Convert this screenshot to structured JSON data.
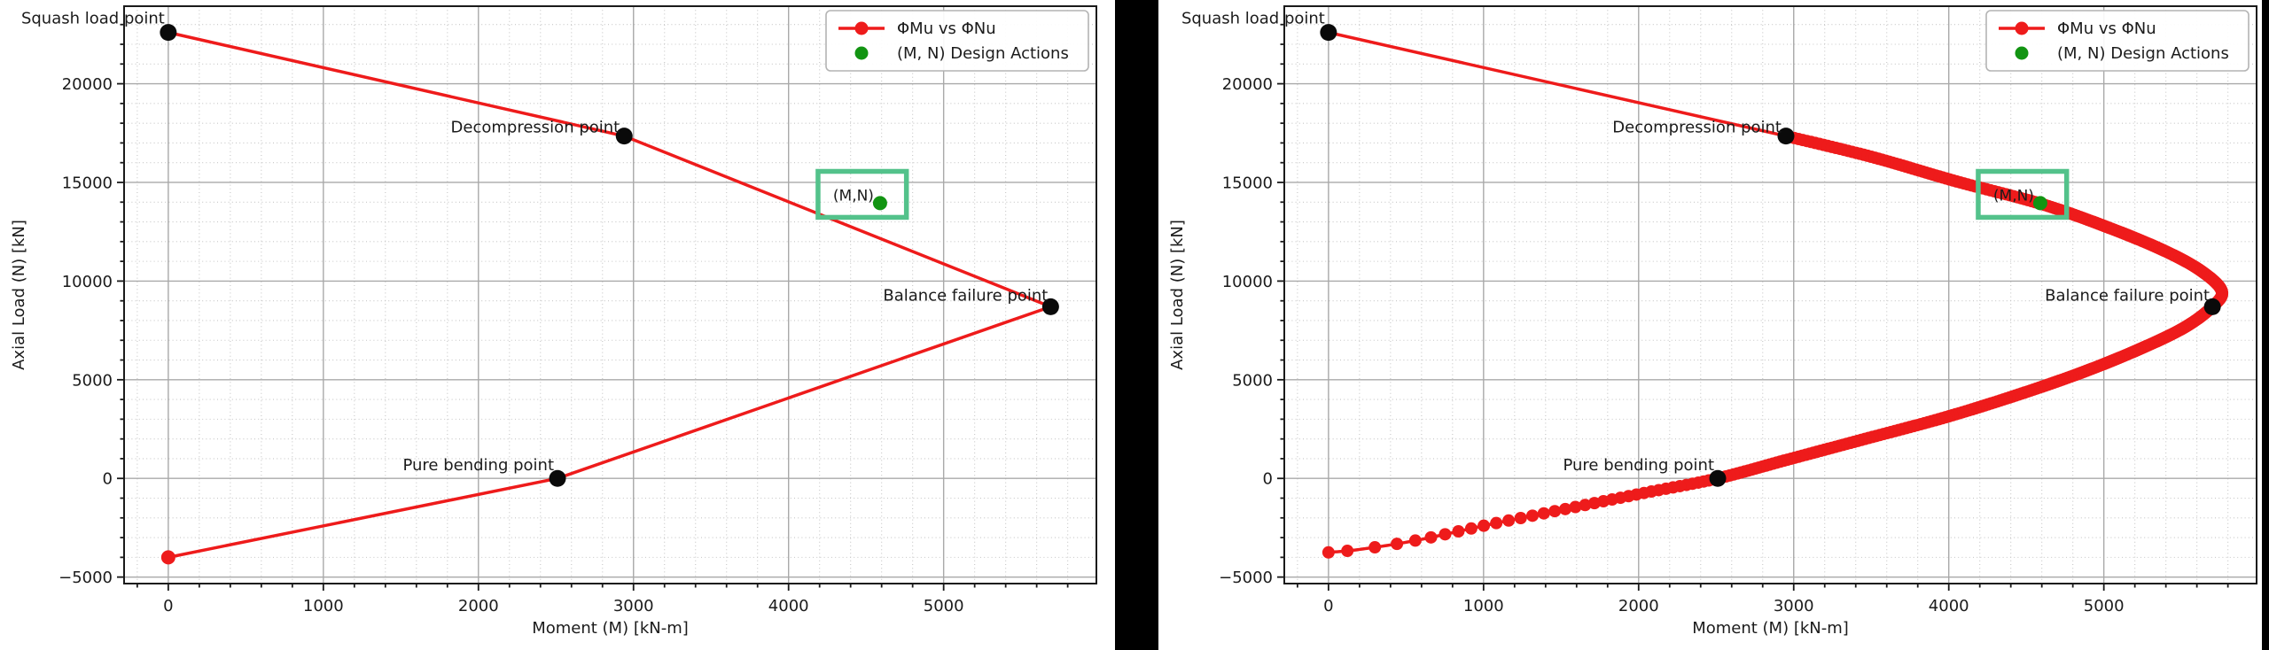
{
  "figure": {
    "background": "#000000",
    "panel_background": "#ffffff",
    "colors": {
      "curve_red": "#ee1b1b",
      "design_green": "#129412",
      "box_green": "#53c28b",
      "key_point_black": "#0a0a0a",
      "grid_major": "#a9a9a9",
      "grid_minor": "#c6c6c6",
      "spine": "#1a1a1a",
      "text": "#1b1b1b",
      "legend_border": "#b4b4b4"
    }
  },
  "axes": {
    "xlabel": "Moment (M) [kN-m]",
    "ylabel": "Axial Load (N) [kN]",
    "xlim": [
      -285,
      5985
    ],
    "ylim": [
      -5330,
      23930
    ],
    "xticks": [
      0,
      1000,
      2000,
      3000,
      4000,
      5000
    ],
    "xtick_labels": [
      "0",
      "1000",
      "2000",
      "3000",
      "4000",
      "5000"
    ],
    "yticks": [
      -5000,
      0,
      5000,
      10000,
      15000,
      20000
    ],
    "ytick_labels": [
      "−5000",
      "0",
      "5000",
      "10000",
      "15000",
      "20000"
    ],
    "x_minor_step": 200,
    "y_minor_step": 1000,
    "grid": "major solid + minor dotted",
    "legend_position": "upper right"
  },
  "legend": {
    "entries": [
      {
        "label": "ΦMu vs ΦNu",
        "marker": "line-dot",
        "color": "#ee1b1b"
      },
      {
        "label": "(M, N) Design Actions",
        "marker": "dot",
        "color": "#129412"
      }
    ]
  },
  "annotations": {
    "design_box_label": "(M,N)",
    "key_point_labels": [
      "Squash load point",
      "Decompression point",
      "Balance failure point",
      "Pure bending point"
    ]
  },
  "chart_data": [
    {
      "id": "interaction-diagram-key-points",
      "type": "line",
      "title": "",
      "xlabel": "Moment (M) [kN-m]",
      "ylabel": "Axial Load (N) [kN]",
      "xlim": [
        -285,
        5985
      ],
      "ylim": [
        -5330,
        23930
      ],
      "series": [
        {
          "name": "ΦMu vs ΦNu",
          "style": "polyline+markers",
          "color": "#ee1b1b",
          "points": [
            [
              0,
              22600
            ],
            [
              2940,
              17350
            ],
            [
              5690,
              8700
            ],
            [
              2510,
              0
            ],
            [
              0,
              -4000
            ]
          ]
        },
        {
          "name": "(M, N) Design Actions",
          "style": "scatter",
          "color": "#129412",
          "points": [
            [
              4590,
              13950
            ]
          ]
        }
      ],
      "key_points": [
        {
          "label": "Squash load point",
          "m": 0,
          "n": 22600
        },
        {
          "label": "Decompression point",
          "m": 2940,
          "n": 17350
        },
        {
          "label": "Balance failure point",
          "m": 5690,
          "n": 8700
        },
        {
          "label": "Pure bending point",
          "m": 2510,
          "n": 0
        }
      ],
      "design_point": {
        "m": 4590,
        "n": 13950
      },
      "design_box": {
        "m1": 4190,
        "m2": 4760,
        "n1": 13230,
        "n2": 15560
      }
    },
    {
      "id": "interaction-diagram-full-curve",
      "type": "line",
      "title": "",
      "xlabel": "Moment (M) [kN-m]",
      "ylabel": "Axial Load (N) [kN]",
      "xlim": [
        -285,
        5985
      ],
      "ylim": [
        -5330,
        23930
      ],
      "series": [
        {
          "name": "ΦMu vs ΦNu",
          "style": "dense-curve+markers",
          "color": "#ee1b1b",
          "points": [
            [
              0,
              22600
            ],
            [
              2950,
              17350
            ],
            [
              3500,
              16300
            ],
            [
              4050,
              15050
            ],
            [
              4600,
              13900
            ],
            [
              5050,
              12650
            ],
            [
              5400,
              11500
            ],
            [
              5630,
              10500
            ],
            [
              5760,
              9500
            ],
            [
              5700,
              8700
            ],
            [
              5520,
              7650
            ],
            [
              5230,
              6550
            ],
            [
              4870,
              5400
            ],
            [
              4450,
              4250
            ],
            [
              3980,
              3100
            ],
            [
              3460,
              2000
            ],
            [
              2960,
              950
            ],
            [
              2510,
              0
            ],
            [
              2060,
              -700
            ],
            [
              1560,
              -1500
            ],
            [
              1060,
              -2300
            ],
            [
              560,
              -3150
            ],
            [
              200,
              -3600
            ],
            [
              0,
              -3750
            ]
          ]
        },
        {
          "name": "(M, N) Design Actions",
          "style": "scatter",
          "color": "#129412",
          "points": [
            [
              4590,
              13950
            ]
          ]
        }
      ],
      "key_points": [
        {
          "label": "Squash load point",
          "m": 0,
          "n": 22600
        },
        {
          "label": "Decompression point",
          "m": 2950,
          "n": 17350
        },
        {
          "label": "Balance failure point",
          "m": 5700,
          "n": 8700
        },
        {
          "label": "Pure bending point",
          "m": 2510,
          "n": 0
        }
      ],
      "design_point": {
        "m": 4590,
        "n": 13950
      },
      "design_box": {
        "m1": 4190,
        "m2": 4760,
        "n1": 13230,
        "n2": 15560
      }
    }
  ]
}
